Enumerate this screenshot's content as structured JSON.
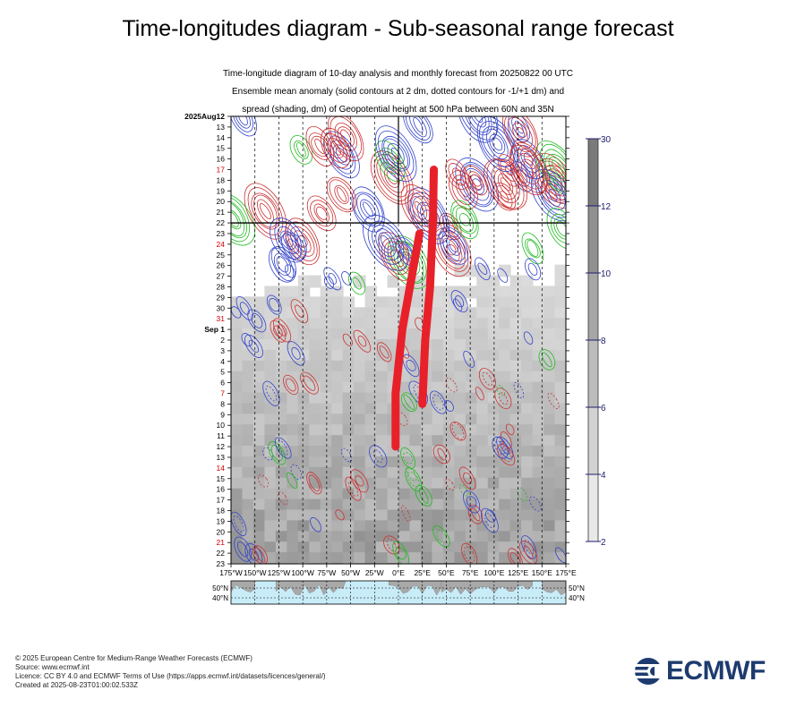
{
  "header": {
    "title": "Time-longitudes diagram - Sub-seasonal range forecast",
    "subtitle_lines": [
      "Time-longitude diagram of 10-day analysis and monthly forecast from 20250822 00 UTC",
      "Ensemble mean anomaly (solid contours at 2 dm, dotted contours for -1/+1 dm) and",
      "spread (shading, dm) of Geopotential height at 500 hPa between 60N and 35N"
    ]
  },
  "chart_data": {
    "type": "heatmap",
    "x_tick_labels": [
      "175°W",
      "150°W",
      "125°W",
      "100°W",
      "75°W",
      "50°W",
      "25°W",
      "0°E",
      "25°E",
      "50°E",
      "75°E",
      "100°E",
      "125°E",
      "150°E",
      "175°E"
    ],
    "y_tick_labels": [
      {
        "label": "2025Aug12",
        "color": "#000000"
      },
      {
        "label": "13",
        "color": "#000000"
      },
      {
        "label": "14",
        "color": "#000000"
      },
      {
        "label": "15",
        "color": "#000000"
      },
      {
        "label": "16",
        "color": "#000000"
      },
      {
        "label": "17",
        "color": "#cc0000"
      },
      {
        "label": "18",
        "color": "#000000"
      },
      {
        "label": "19",
        "color": "#000000"
      },
      {
        "label": "20",
        "color": "#000000"
      },
      {
        "label": "21",
        "color": "#000000"
      },
      {
        "label": "22",
        "color": "#000000"
      },
      {
        "label": "23",
        "color": "#000000"
      },
      {
        "label": "24",
        "color": "#cc0000"
      },
      {
        "label": "25",
        "color": "#000000"
      },
      {
        "label": "26",
        "color": "#000000"
      },
      {
        "label": "27",
        "color": "#000000"
      },
      {
        "label": "28",
        "color": "#000000"
      },
      {
        "label": "29",
        "color": "#000000"
      },
      {
        "label": "30",
        "color": "#000000"
      },
      {
        "label": "31",
        "color": "#cc0000"
      },
      {
        "label": "Sep  1",
        "color": "#000000"
      },
      {
        "label": "2",
        "color": "#000000"
      },
      {
        "label": "3",
        "color": "#000000"
      },
      {
        "label": "4",
        "color": "#000000"
      },
      {
        "label": "5",
        "color": "#000000"
      },
      {
        "label": "6",
        "color": "#000000"
      },
      {
        "label": "7",
        "color": "#cc0000"
      },
      {
        "label": "8",
        "color": "#000000"
      },
      {
        "label": "9",
        "color": "#000000"
      },
      {
        "label": "10",
        "color": "#000000"
      },
      {
        "label": "11",
        "color": "#000000"
      },
      {
        "label": "12",
        "color": "#000000"
      },
      {
        "label": "13",
        "color": "#000000"
      },
      {
        "label": "14",
        "color": "#cc0000"
      },
      {
        "label": "15",
        "color": "#000000"
      },
      {
        "label": "16",
        "color": "#000000"
      },
      {
        "label": "17",
        "color": "#000000"
      },
      {
        "label": "18",
        "color": "#000000"
      },
      {
        "label": "19",
        "color": "#000000"
      },
      {
        "label": "20",
        "color": "#000000"
      },
      {
        "label": "21",
        "color": "#cc0000"
      },
      {
        "label": "22",
        "color": "#000000"
      },
      {
        "label": "23",
        "color": "#000000"
      }
    ],
    "analysis_end_date": "22",
    "colorbar": {
      "ticks": [
        2,
        4,
        6,
        8,
        10,
        12,
        30
      ],
      "range": [
        2,
        30
      ]
    },
    "map_lat_labels": [
      "50°N",
      "40°N"
    ],
    "colors": {
      "positive": "#cc3333",
      "negative": "#3344cc",
      "zero": "#22bb22",
      "highlight": "#e8202a"
    },
    "highlight_paths": [
      {
        "points": [
          [
            -3,
            31
          ],
          [
            -3,
            26
          ],
          [
            4,
            20
          ],
          [
            12,
            16
          ],
          [
            22,
            11
          ]
        ]
      },
      {
        "points": [
          [
            25,
            27
          ],
          [
            28,
            21
          ],
          [
            33,
            16
          ],
          [
            36,
            10
          ],
          [
            37,
            5
          ]
        ]
      }
    ]
  },
  "footer": {
    "lines": [
      "© 2025 European Centre for Medium-Range Weather Forecasts (ECMWF)",
      "Source: www.ecmwf.int",
      "Licence: CC BY 4.0 and ECMWF Terms of Use (https://apps.ecmwf.int/datasets/licences/general/)",
      "Created at 2025-08-23T01:00:02.533Z"
    ]
  },
  "logo": {
    "text": "ECMWF",
    "color": "#1d3b6e"
  }
}
